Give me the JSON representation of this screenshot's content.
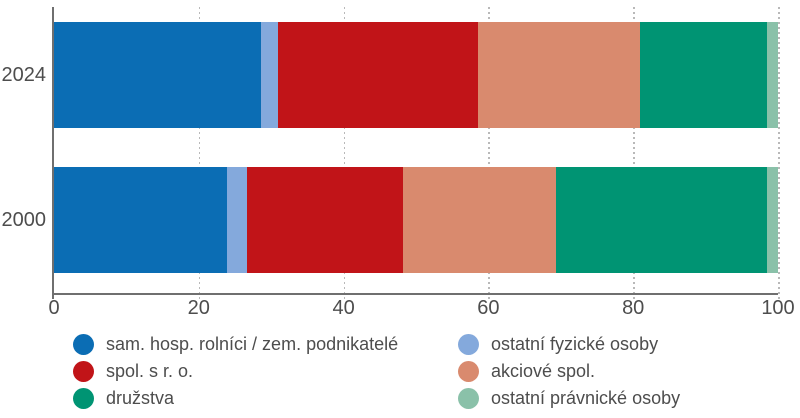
{
  "colors": {
    "background": "#ffffff",
    "axis": "#6f6f6f",
    "gridline": "#b9b9b9",
    "text": "#4d4d4d"
  },
  "chart_data": {
    "type": "bar",
    "variant": "horizontal-stacked",
    "title": "",
    "xlabel": "",
    "ylabel": "",
    "xlim": [
      0,
      100
    ],
    "x_ticks": [
      0,
      20,
      40,
      60,
      80,
      100
    ],
    "grid": "dashed-vertical",
    "legend_position": "bottom-two-columns",
    "categories": [
      "2024",
      "2000"
    ],
    "series": [
      {
        "name": "sam. hosp. rolníci / zem. podnikatelé",
        "color": "#0b6db4",
        "values": [
          28.6,
          23.9
        ]
      },
      {
        "name": "ostatní fyzické osoby",
        "color": "#84a9dc",
        "values": [
          2.4,
          2.8
        ]
      },
      {
        "name": "spol. s r. o.",
        "color": "#c11418",
        "values": [
          27.6,
          21.5
        ]
      },
      {
        "name": "akciové spol.",
        "color": "#d98a6e",
        "values": [
          22.4,
          21.1
        ]
      },
      {
        "name": "družstva",
        "color": "#009473",
        "values": [
          17.5,
          29.2
        ]
      },
      {
        "name": "ostatní právnické osoby",
        "color": "#8ac1a9",
        "values": [
          1.5,
          1.5
        ]
      }
    ],
    "legend_columns": [
      [
        0,
        2,
        4
      ],
      [
        1,
        3,
        5
      ]
    ]
  }
}
